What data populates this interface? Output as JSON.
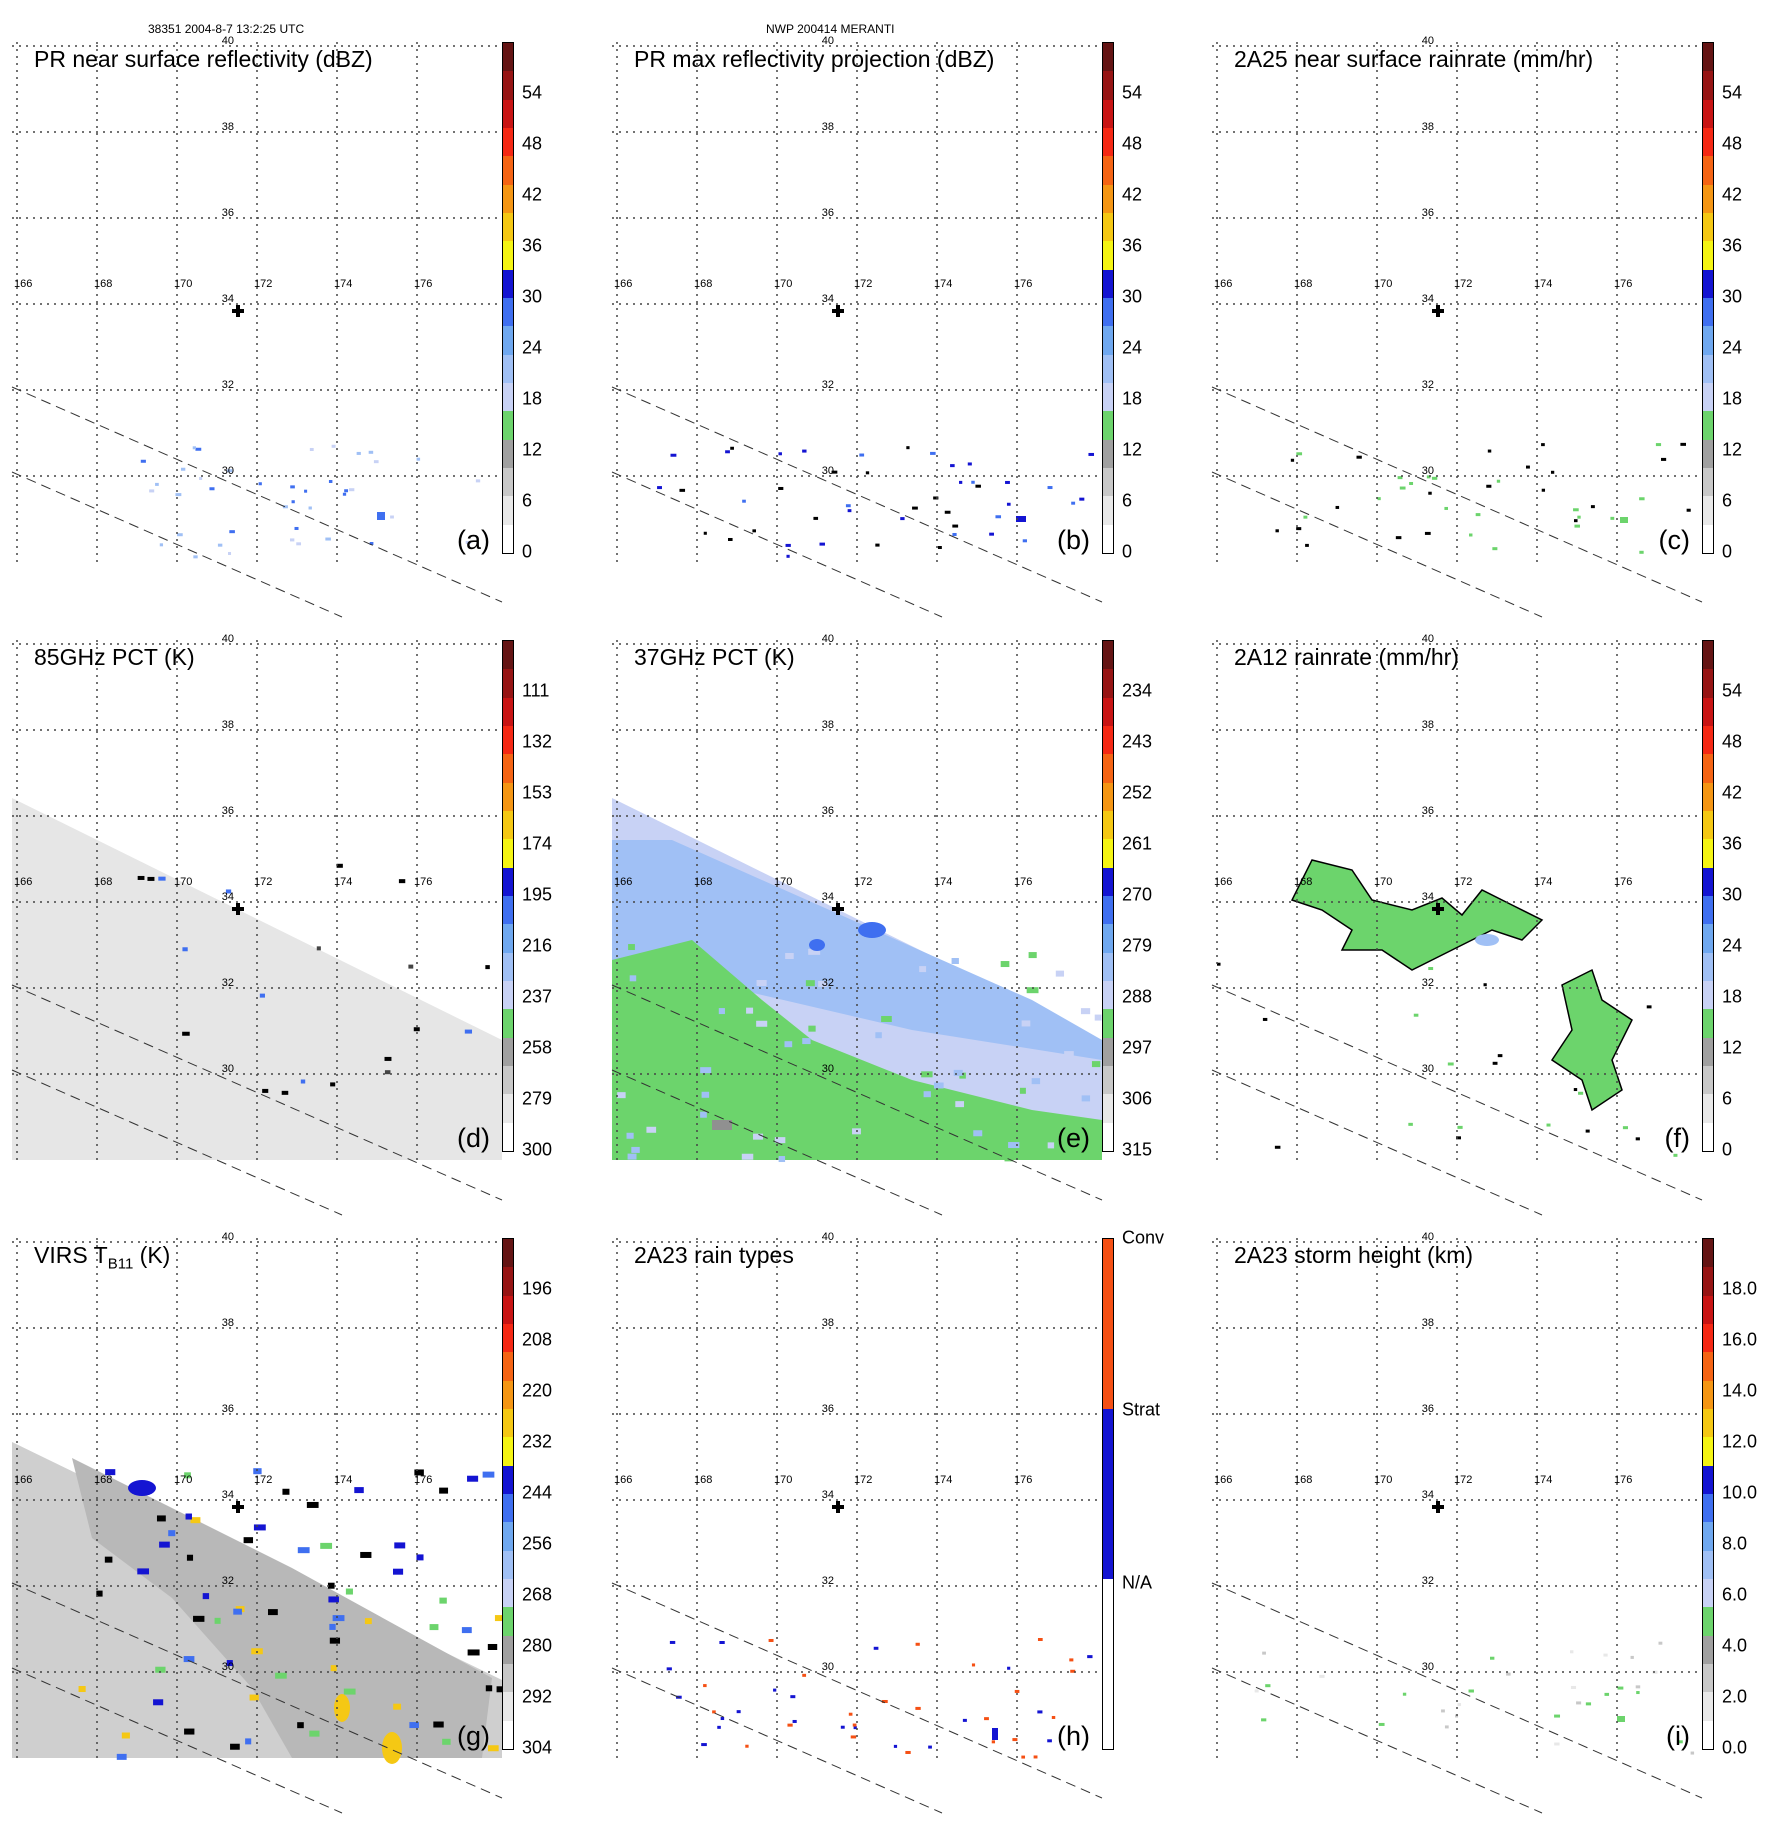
{
  "header": {
    "left": "38351 2004-8-7 13:2:25 UTC",
    "center": "NWP 200414 MERANTI"
  },
  "map": {
    "lon_labels": [
      "166",
      "168",
      "170",
      "172",
      "174",
      "176"
    ],
    "lat_labels": [
      "40",
      "38",
      "36",
      "34",
      "32",
      "30"
    ]
  },
  "colors": {
    "reflectivity_scale": [
      "#ffffff",
      "#e8e8e8",
      "#c8c8c8",
      "#a0a0a0",
      "#6cd46c",
      "#c8d2f5",
      "#a0c0f5",
      "#6fa8f0",
      "#3f6ff0",
      "#1414d2",
      "#f5f514",
      "#f5c814",
      "#f59614",
      "#f56414",
      "#f52814",
      "#c81414",
      "#961414",
      "#641414"
    ],
    "tb_scale": [
      "#ffffff",
      "#e8e8e8",
      "#c8c8c8",
      "#a0a0a0",
      "#6cd46c",
      "#c8d2f5",
      "#a0c0f5",
      "#6fa8f0",
      "#3f6ff0",
      "#1414d2",
      "#f5f514",
      "#f5c814",
      "#f59614",
      "#f56414",
      "#f52814",
      "#c81414",
      "#961414",
      "#641414"
    ],
    "raintype_scale": [
      "#ffffff",
      "#1414d2",
      "#f55014"
    ]
  },
  "panels": [
    {
      "id": "a",
      "title": "PR near surface reflectivity (dBZ)",
      "label": "(a)",
      "ticks": [
        "0",
        "6",
        "12",
        "18",
        "24",
        "30",
        "36",
        "42",
        "48",
        "54"
      ]
    },
    {
      "id": "b",
      "title": "PR max reflectivity projection (dBZ)",
      "label": "(b)",
      "ticks": [
        "0",
        "6",
        "12",
        "18",
        "24",
        "30",
        "36",
        "42",
        "48",
        "54"
      ]
    },
    {
      "id": "c",
      "title": "2A25 near surface rainrate (mm/hr)",
      "label": "(c)",
      "ticks": [
        "0",
        "6",
        "12",
        "18",
        "24",
        "30",
        "36",
        "42",
        "48",
        "54"
      ]
    },
    {
      "id": "d",
      "title": "85GHz PCT (K)",
      "label": "(d)",
      "ticks": [
        "300",
        "279",
        "258",
        "237",
        "216",
        "195",
        "174",
        "153",
        "132",
        "111"
      ]
    },
    {
      "id": "e",
      "title": "37GHz PCT (K)",
      "label": "(e)",
      "ticks": [
        "315",
        "306",
        "297",
        "288",
        "279",
        "270",
        "261",
        "252",
        "243",
        "234"
      ]
    },
    {
      "id": "f",
      "title": "2A12 rainrate (mm/hr)",
      "label": "(f)",
      "ticks": [
        "0",
        "6",
        "12",
        "18",
        "24",
        "30",
        "36",
        "42",
        "48",
        "54"
      ]
    },
    {
      "id": "g",
      "title_main": "VIRS T",
      "title_sub": "B11",
      "title_unit": " (K)",
      "label": "(g)",
      "ticks": [
        "304",
        "292",
        "280",
        "268",
        "256",
        "244",
        "232",
        "220",
        "208",
        "196"
      ]
    },
    {
      "id": "h",
      "title": "2A23 rain types",
      "label": "(h)",
      "ticks": [
        "N/A",
        "Strat",
        "Conv"
      ]
    },
    {
      "id": "i",
      "title": "2A23 storm height (km)",
      "label": "(i)",
      "ticks": [
        "0.0",
        "2.0",
        "4.0",
        "6.0",
        "8.0",
        "10.0",
        "12.0",
        "14.0",
        "16.0",
        "18.0"
      ]
    }
  ]
}
